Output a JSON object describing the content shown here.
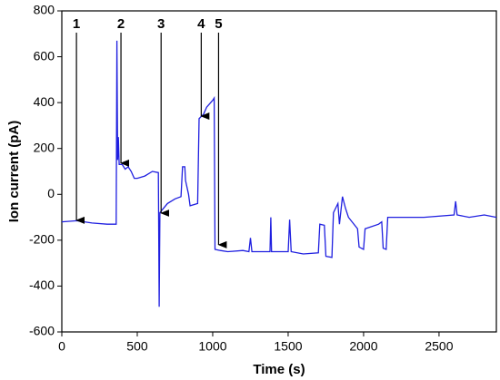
{
  "chart_data": {
    "type": "line",
    "xlabel": "Time (s)",
    "ylabel": "Ion current (pA)",
    "x": [
      0,
      100,
      200,
      300,
      360,
      365,
      370,
      375,
      380,
      400,
      420,
      440,
      460,
      480,
      500,
      550,
      600,
      640,
      645,
      650,
      700,
      750,
      790,
      800,
      815,
      820,
      840,
      850,
      900,
      910,
      940,
      960,
      1000,
      1010,
      1015,
      1050,
      1100,
      1200,
      1240,
      1250,
      1260,
      1380,
      1385,
      1390,
      1500,
      1510,
      1520,
      1600,
      1700,
      1710,
      1740,
      1750,
      1790,
      1800,
      1830,
      1840,
      1860,
      1880,
      1900,
      1960,
      1970,
      2000,
      2010,
      2100,
      2120,
      2130,
      2150,
      2160,
      2300,
      2400,
      2600,
      2610,
      2620,
      2700,
      2800,
      2880
    ],
    "series": [
      {
        "name": "Ion current",
        "color": "#1f1fe0",
        "values": [
          -120,
          -115,
          -125,
          -130,
          -130,
          670,
          150,
          250,
          130,
          130,
          110,
          120,
          100,
          70,
          70,
          80,
          100,
          95,
          -490,
          -80,
          -40,
          -20,
          -10,
          120,
          120,
          60,
          0,
          -50,
          -40,
          330,
          350,
          380,
          410,
          420,
          -240,
          -245,
          -250,
          -245,
          -250,
          -190,
          -250,
          -250,
          -100,
          -250,
          -250,
          -110,
          -250,
          -260,
          -255,
          -130,
          -135,
          -270,
          -275,
          -80,
          -40,
          -130,
          -10,
          -60,
          -100,
          -150,
          -230,
          -240,
          -150,
          -130,
          -120,
          -235,
          -240,
          -100,
          -100,
          -100,
          -90,
          -30,
          -90,
          -100,
          -90,
          -100
        ]
      }
    ],
    "annotations": [
      {
        "text": "1",
        "x": 97,
        "y": -113
      },
      {
        "text": "2",
        "x": 392,
        "y": 136
      },
      {
        "text": "3",
        "x": 658,
        "y": -82
      },
      {
        "text": "4",
        "x": 924,
        "y": 341
      },
      {
        "text": "5",
        "x": 1039,
        "y": -220
      }
    ],
    "xlim": [
      0,
      2880
    ],
    "ylim": [
      -600,
      800
    ],
    "xticks": [
      0,
      500,
      1000,
      1500,
      2000,
      2500
    ],
    "yticks": [
      -600,
      -400,
      -200,
      0,
      200,
      400,
      600,
      800
    ]
  }
}
